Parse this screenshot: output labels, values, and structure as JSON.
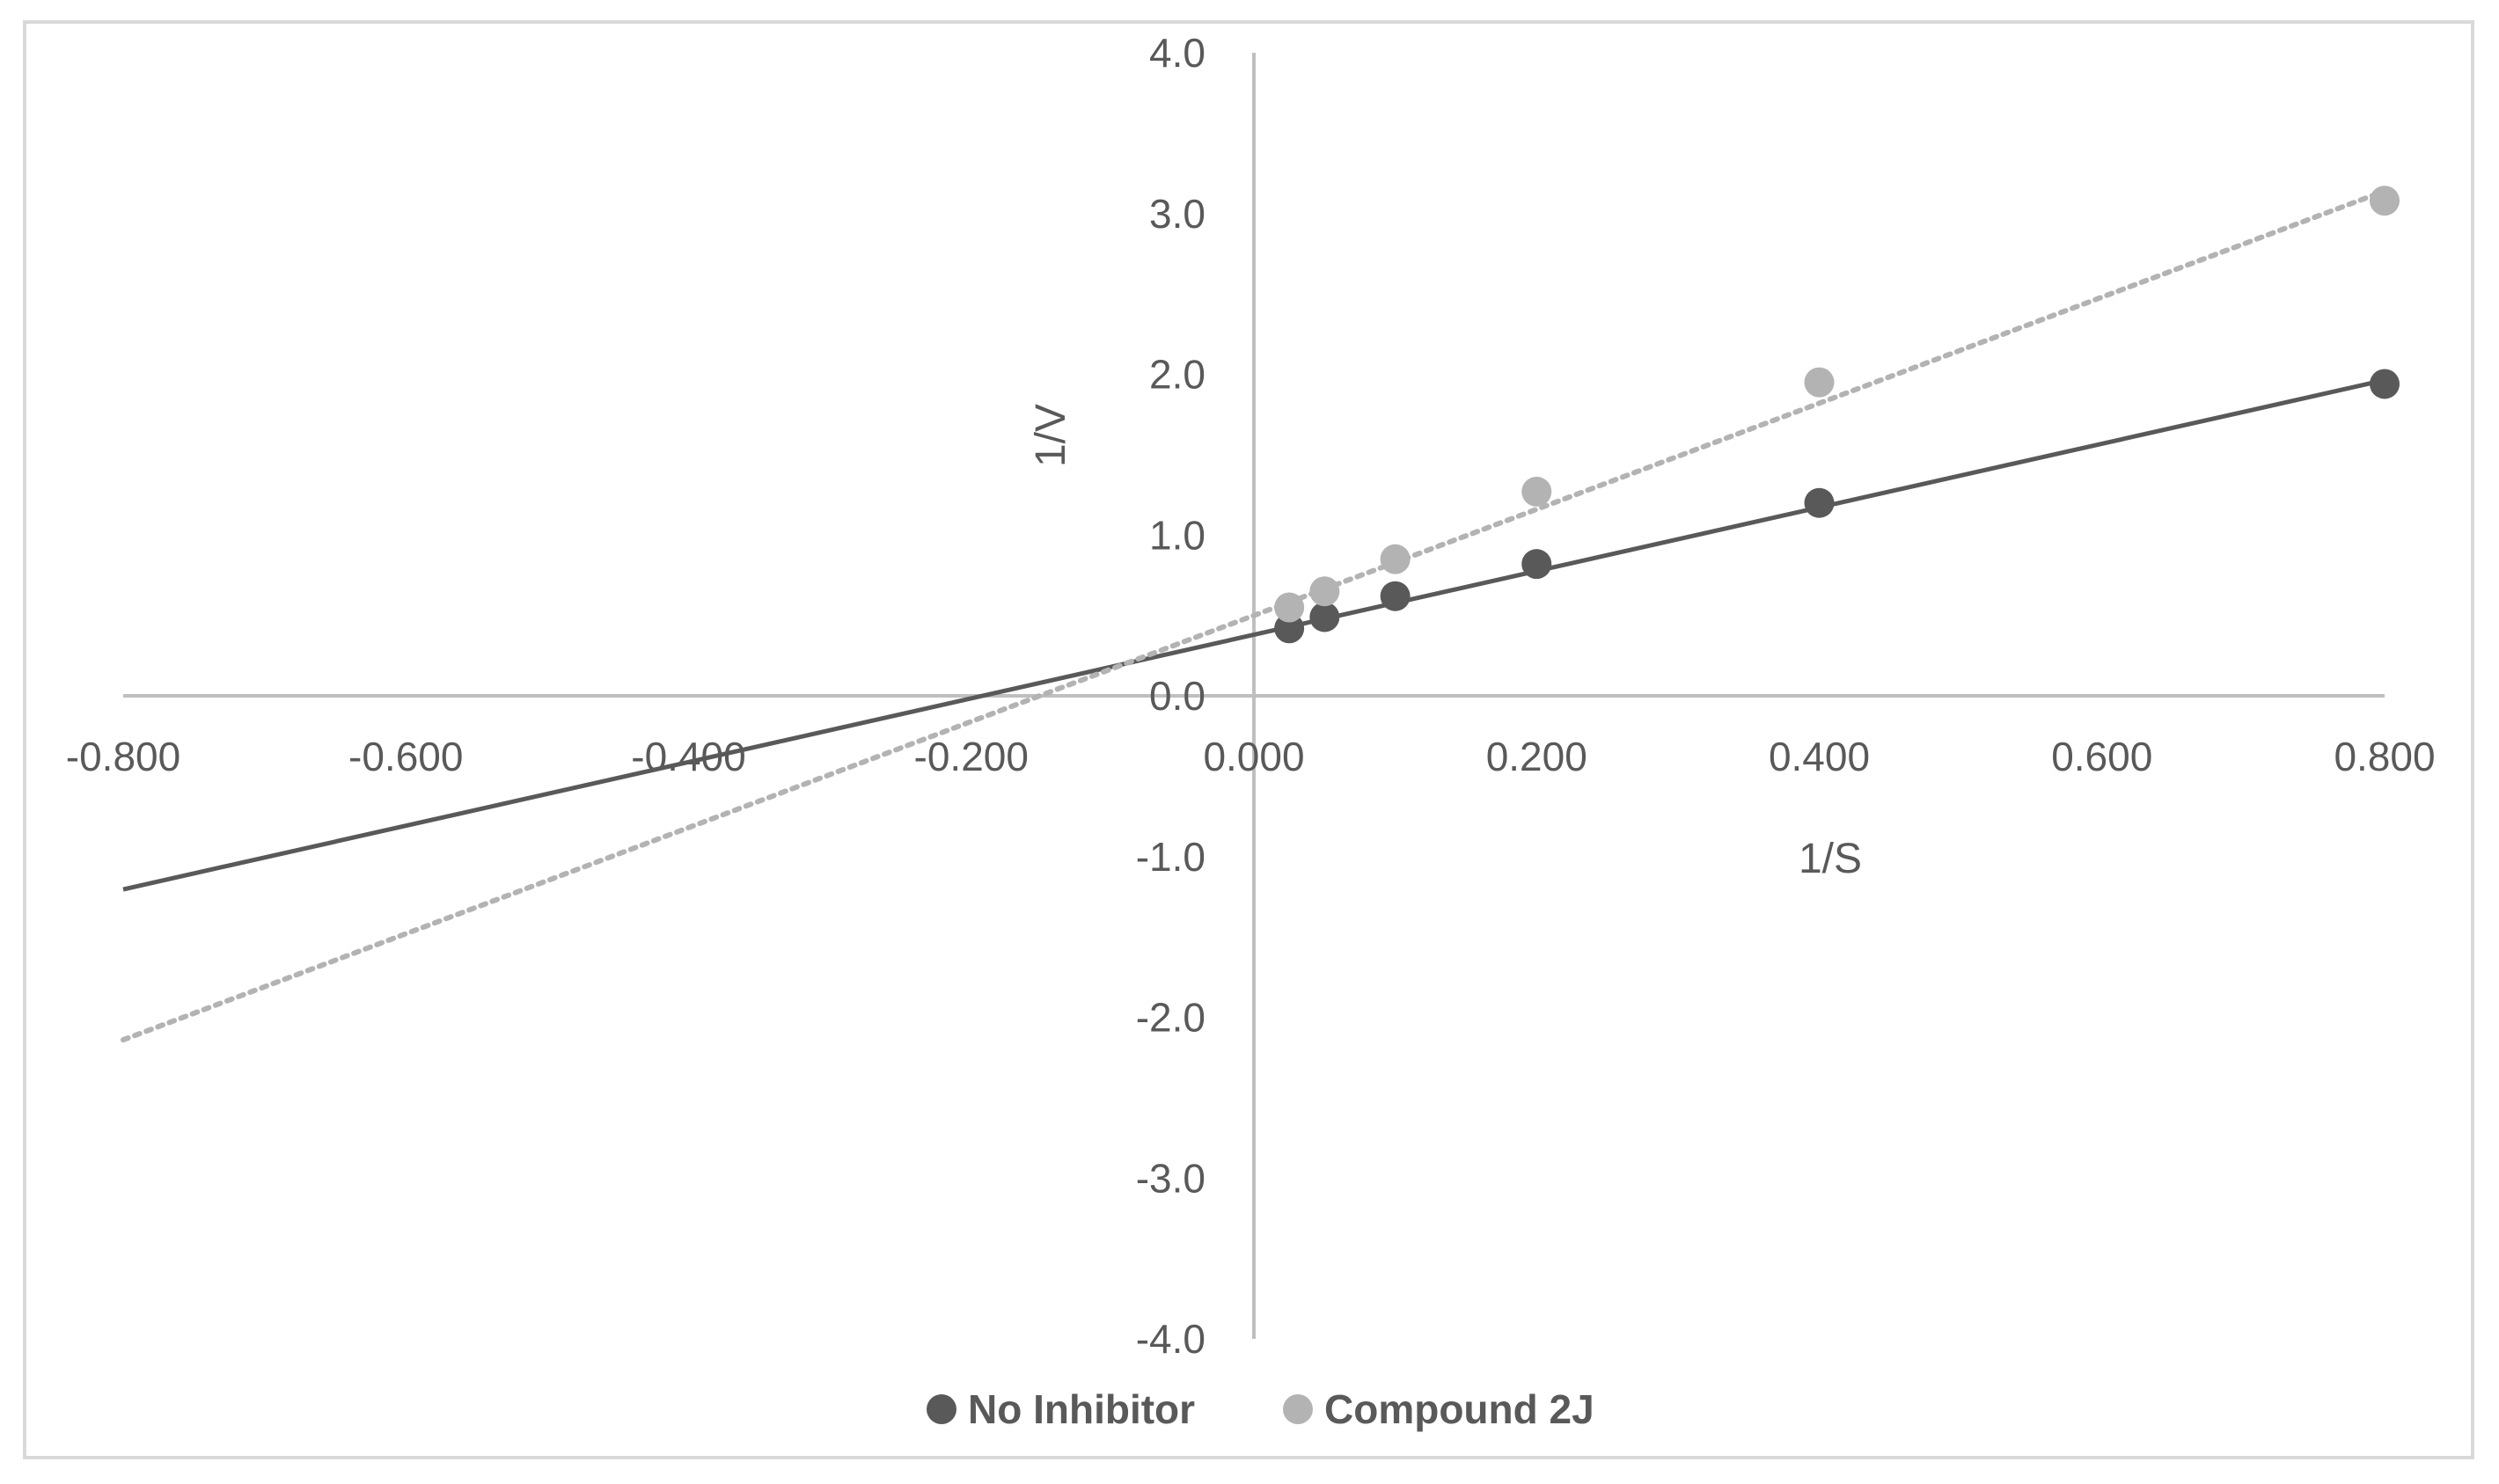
{
  "chart_data": {
    "type": "scatter",
    "title": "",
    "xlabel": "1/S",
    "ylabel": "1/V",
    "xlim": [
      -0.8,
      0.8
    ],
    "ylim": [
      -4.0,
      4.0
    ],
    "x_ticks": [
      -0.8,
      -0.6,
      -0.4,
      -0.2,
      0.0,
      0.2,
      0.4,
      0.6,
      0.8
    ],
    "x_tick_labels": [
      "-0.800",
      "-0.600",
      "-0.400",
      "-0.200",
      "0.000",
      "0.200",
      "0.400",
      "0.600",
      "0.800"
    ],
    "y_ticks": [
      -4.0,
      -3.0,
      -2.0,
      -1.0,
      0.0,
      1.0,
      2.0,
      3.0,
      4.0
    ],
    "y_tick_labels": [
      "-4.0",
      "-3.0",
      "-2.0",
      "-1.0",
      "0.0",
      "1.0",
      "2.0",
      "3.0",
      "4.0"
    ],
    "grid": false,
    "legend_position": "bottom",
    "series": [
      {
        "name": "No Inhibitor",
        "color": "#595959",
        "x": [
          0.025,
          0.05,
          0.1,
          0.2,
          0.4,
          0.8
        ],
        "y": [
          0.42,
          0.49,
          0.62,
          0.82,
          1.2,
          1.94
        ],
        "trendline": {
          "style": "solid",
          "slope": 1.98,
          "intercept": 0.38,
          "x_range": [
            -0.8,
            0.8
          ]
        }
      },
      {
        "name": "Compound 2J",
        "color": "#b3b3b3",
        "x": [
          0.025,
          0.05,
          0.1,
          0.2,
          0.4,
          0.8
        ],
        "y": [
          0.55,
          0.65,
          0.85,
          1.27,
          1.95,
          3.08
        ],
        "trendline": {
          "style": "dotted",
          "slope": 3.3,
          "intercept": 0.5,
          "x_range": [
            -0.8,
            0.8
          ]
        }
      }
    ]
  }
}
